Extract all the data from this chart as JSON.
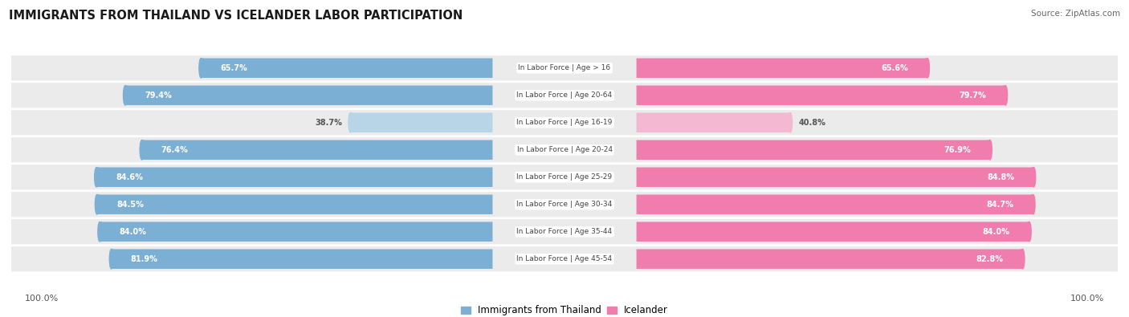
{
  "title": "IMMIGRANTS FROM THAILAND VS ICELANDER LABOR PARTICIPATION",
  "source": "Source: ZipAtlas.com",
  "categories": [
    "In Labor Force | Age > 16",
    "In Labor Force | Age 20-64",
    "In Labor Force | Age 16-19",
    "In Labor Force | Age 20-24",
    "In Labor Force | Age 25-29",
    "In Labor Force | Age 30-34",
    "In Labor Force | Age 35-44",
    "In Labor Force | Age 45-54"
  ],
  "thailand_values": [
    65.7,
    79.4,
    38.7,
    76.4,
    84.6,
    84.5,
    84.0,
    81.9
  ],
  "icelander_values": [
    65.6,
    79.7,
    40.8,
    76.9,
    84.8,
    84.7,
    84.0,
    82.8
  ],
  "thailand_color": "#7BAFD4",
  "thailand_color_light": "#B8D5E8",
  "icelander_color": "#F07DAD",
  "icelander_color_light": "#F5B8D2",
  "row_bg_color": "#EBEBEB",
  "max_value": 100.0,
  "legend_thailand": "Immigrants from Thailand",
  "legend_icelander": "Icelander",
  "figsize": [
    14.06,
    3.95
  ],
  "dpi": 100
}
